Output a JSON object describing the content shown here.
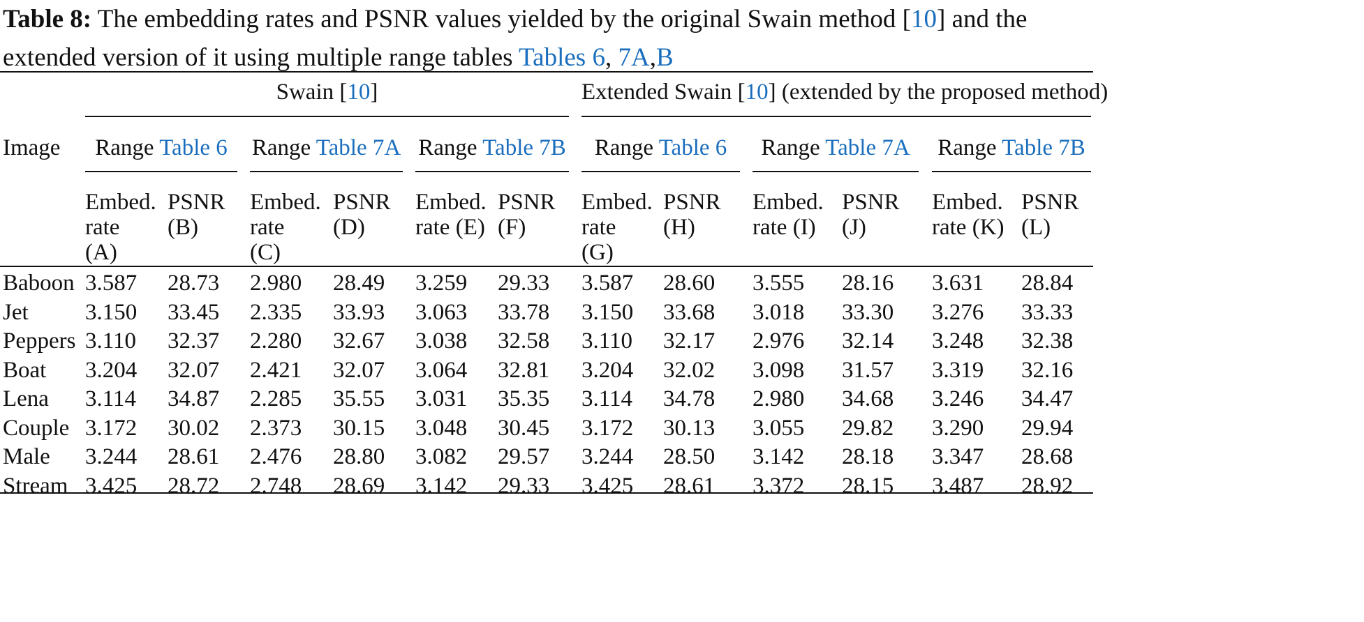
{
  "caption": {
    "label": "Table 8:",
    "text_line1": " The embedding rates and PSNR values yielded by the original Swain method [",
    "ref1": "10",
    "text_line1_end": "] and the",
    "text_line2": "extended version of it using multiple range tables ",
    "link_tables6": "Tables 6",
    "sep1": ", ",
    "link_7a": "7A",
    "sep2": ",",
    "link_b": "B"
  },
  "header": {
    "image_label": "Image",
    "group1": {
      "pre": "Swain [",
      "ref": "10",
      "post": "]"
    },
    "group2": {
      "pre": "Extended Swain [",
      "ref": "10",
      "post": "] (extended by the proposed method)"
    },
    "ranges": [
      {
        "pre": "Range ",
        "link": "Table 6"
      },
      {
        "pre": "Range ",
        "link": "Table 7A"
      },
      {
        "pre": "Range ",
        "link": "Table 7B"
      },
      {
        "pre": "Range ",
        "link": "Table 6"
      },
      {
        "pre": "Range ",
        "link": "Table 7A"
      },
      {
        "pre": "Range ",
        "link": "Table 7B"
      }
    ],
    "cols": [
      [
        "Embed.",
        "rate",
        "(A)"
      ],
      [
        "PSNR",
        "(B)"
      ],
      [
        "Embed.",
        "rate",
        "(C)"
      ],
      [
        "PSNR",
        "(D)"
      ],
      [
        "Embed.",
        "rate (E)"
      ],
      [
        "PSNR",
        "(F)"
      ],
      [
        "Embed.",
        "rate",
        "(G)"
      ],
      [
        "PSNR",
        "(H)"
      ],
      [
        "Embed.",
        "rate (I)"
      ],
      [
        "PSNR",
        "(J)"
      ],
      [
        "Embed.",
        "rate (K)"
      ],
      [
        "PSNR",
        "(L)"
      ]
    ]
  },
  "rows": [
    {
      "image": "Baboon",
      "values": [
        "3.587",
        "28.73",
        "2.980",
        "28.49",
        "3.259",
        "29.33",
        "3.587",
        "28.60",
        "3.555",
        "28.16",
        "3.631",
        "28.84"
      ]
    },
    {
      "image": "Jet",
      "values": [
        "3.150",
        "33.45",
        "2.335",
        "33.93",
        "3.063",
        "33.78",
        "3.150",
        "33.68",
        "3.018",
        "33.30",
        "3.276",
        "33.33"
      ]
    },
    {
      "image": "Peppers",
      "values": [
        "3.110",
        "32.37",
        "2.280",
        "32.67",
        "3.038",
        "32.58",
        "3.110",
        "32.17",
        "2.976",
        "32.14",
        "3.248",
        "32.38"
      ]
    },
    {
      "image": "Boat",
      "values": [
        "3.204",
        "32.07",
        "2.421",
        "32.07",
        "3.064",
        "32.81",
        "3.204",
        "32.02",
        "3.098",
        "31.57",
        "3.319",
        "32.16"
      ]
    },
    {
      "image": "Lena",
      "values": [
        "3.114",
        "34.87",
        "2.285",
        "35.55",
        "3.031",
        "35.35",
        "3.114",
        "34.78",
        "2.980",
        "34.68",
        "3.246",
        "34.47"
      ]
    },
    {
      "image": "Couple",
      "values": [
        "3.172",
        "30.02",
        "2.373",
        "30.15",
        "3.048",
        "30.45",
        "3.172",
        "30.13",
        "3.055",
        "29.82",
        "3.290",
        "29.94"
      ]
    },
    {
      "image": "Male",
      "values": [
        "3.244",
        "28.61",
        "2.476",
        "28.80",
        "3.082",
        "29.57",
        "3.244",
        "28.50",
        "3.142",
        "28.18",
        "3.347",
        "28.68"
      ]
    },
    {
      "image": "Stream",
      "values": [
        "3.425",
        "28.72",
        "2.748",
        "28.69",
        "3.142",
        "29.33",
        "3.425",
        "28.61",
        "3.372",
        "28.15",
        "3.487",
        "28.92"
      ]
    }
  ]
}
